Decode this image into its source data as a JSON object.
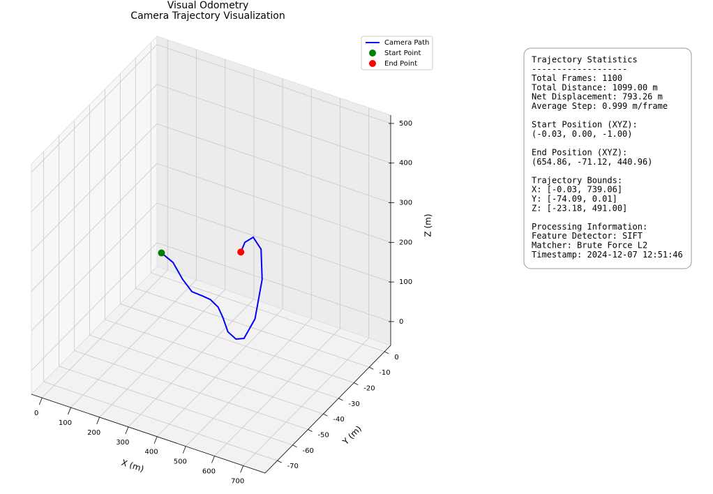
{
  "chart_data": {
    "type": "line3d",
    "title": "Visual Odometry",
    "subtitle": "Camera Trajectory Visualization",
    "xlabel": "X (m)",
    "ylabel": "Y (m)",
    "zlabel": "Z (m)",
    "xlim": [
      -37,
      776
    ],
    "ylim": [
      -78,
      4
    ],
    "zlim": [
      -60,
      521
    ],
    "xticks": [
      0,
      100,
      200,
      300,
      400,
      500,
      600,
      700
    ],
    "yticks": [
      0,
      -10,
      -20,
      -30,
      -40,
      -50,
      -60,
      -70
    ],
    "zticks": [
      0,
      100,
      200,
      300,
      400,
      500
    ],
    "grid": true,
    "legend": "upper right",
    "series": [
      {
        "name": "Camera Path",
        "color": "#0000ff",
        "marker": "line",
        "x": [
          -0.03,
          40,
          100,
          170,
          250,
          330,
          410,
          480,
          540,
          600,
          660,
          720,
          739.06,
          730,
          700,
          670,
          654.86
        ],
        "y": [
          0,
          0.01,
          -5,
          -12,
          -20,
          -30,
          -40,
          -50,
          -58,
          -64,
          -70,
          -74.09,
          -73,
          -72,
          -71.5,
          -71.3,
          -71.12
        ],
        "z": [
          -1,
          -15,
          -23.18,
          -10,
          30,
          80,
          120,
          150,
          160,
          180,
          220,
          300,
          400,
          470,
          491,
          470,
          440.96
        ]
      },
      {
        "name": "Start Point",
        "color": "#008000",
        "marker": "dot",
        "x": [
          -0.03
        ],
        "y": [
          0
        ],
        "z": [
          -1
        ]
      },
      {
        "name": "End Point",
        "color": "#ff0000",
        "marker": "dot",
        "x": [
          654.86
        ],
        "y": [
          -71.12
        ],
        "z": [
          440.96
        ]
      }
    ]
  },
  "stats": {
    "sections": [
      [
        "Trajectory Statistics",
        "-------------------",
        "Total Frames: 1100",
        "Total Distance: 1099.00 m",
        "Net Displacement: 793.26 m",
        "Average Step: 0.999 m/frame"
      ],
      [
        "Start Position (XYZ):",
        "(-0.03, 0.00, -1.00)"
      ],
      [
        "End Position (XYZ):",
        "(654.86, -71.12, 440.96)"
      ],
      [
        "Trajectory Bounds:",
        "X: [-0.03, 739.06]",
        "Y: [-74.09, 0.01]",
        "Z: [-23.18, 491.00]"
      ],
      [
        "Processing Information:",
        "Feature Detector: SIFT",
        "Matcher: Brute Force L2",
        "Timestamp: 2024-12-07 12:51:46"
      ]
    ]
  }
}
